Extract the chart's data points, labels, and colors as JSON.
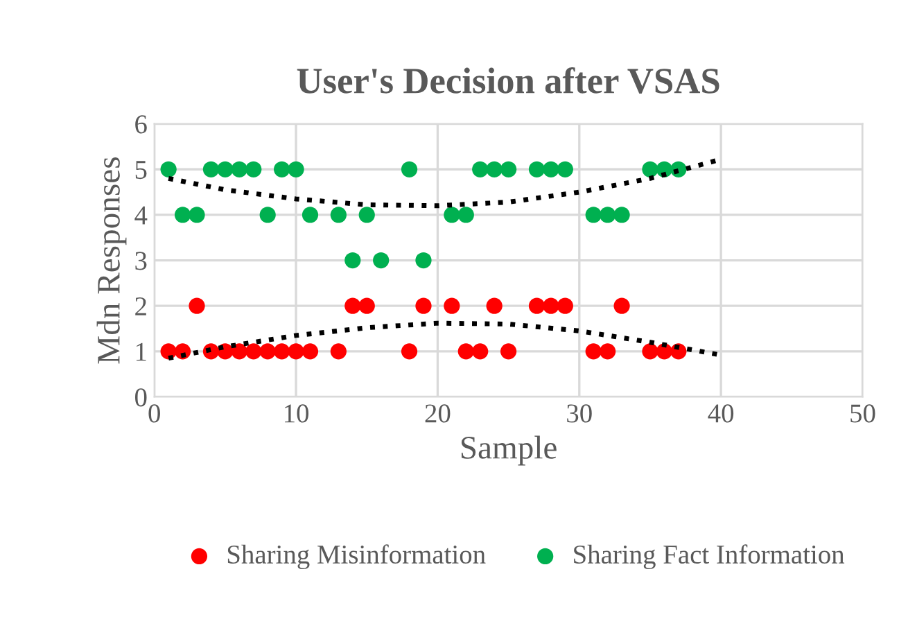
{
  "chart_data": {
    "type": "scatter",
    "title": "User's Decision after VSAS",
    "xlabel": "Sample",
    "ylabel": "Mdn Responses",
    "xlim": [
      0,
      50
    ],
    "xticks": [
      0,
      10,
      20,
      30,
      40,
      50
    ],
    "ylim": [
      0,
      6
    ],
    "yticks": [
      0,
      1,
      2,
      3,
      4,
      5,
      6
    ],
    "grid": true,
    "legend": "bottom",
    "marker": "circle",
    "series": [
      {
        "name": "Sharing Misinformation",
        "color": "#ff0000",
        "x": [
          1,
          2,
          3,
          4,
          5,
          6,
          7,
          8,
          9,
          10,
          11,
          13,
          14,
          15,
          18,
          19,
          21,
          22,
          23,
          24,
          25,
          27,
          28,
          29,
          31,
          32,
          33,
          35,
          36,
          37
        ],
        "values": [
          1,
          1,
          2,
          1,
          1,
          1,
          1,
          1,
          1,
          1,
          1,
          1,
          2,
          2,
          1,
          2,
          2,
          1,
          1,
          2,
          1,
          2,
          2,
          2,
          1,
          1,
          2,
          1,
          1,
          1
        ]
      },
      {
        "name": "Sharing Fact Information",
        "color": "#00b050",
        "x": [
          1,
          2,
          3,
          4,
          5,
          6,
          7,
          8,
          9,
          10,
          11,
          13,
          14,
          15,
          16,
          18,
          19,
          21,
          22,
          23,
          24,
          25,
          27,
          28,
          29,
          31,
          32,
          33,
          35,
          36,
          37
        ],
        "values": [
          5,
          4,
          4,
          5,
          5,
          5,
          5,
          4,
          5,
          5,
          4,
          4,
          3,
          4,
          3,
          5,
          3,
          4,
          4,
          5,
          5,
          5,
          5,
          5,
          5,
          4,
          4,
          4,
          5,
          5,
          5
        ]
      },
      {
        "type": "line",
        "color": "#000000",
        "line_style": "dotted",
        "marker": "none",
        "x": [
          1,
          5,
          10,
          15,
          20,
          25,
          30,
          35,
          40
        ],
        "values": [
          0.85,
          1.1,
          1.35,
          1.52,
          1.62,
          1.6,
          1.45,
          1.2,
          0.92
        ]
      },
      {
        "type": "line",
        "color": "#000000",
        "line_style": "dotted",
        "marker": "none",
        "x": [
          1,
          5,
          10,
          15,
          20,
          25,
          30,
          35,
          40
        ],
        "values": [
          4.8,
          4.55,
          4.35,
          4.22,
          4.2,
          4.28,
          4.5,
          4.8,
          5.22
        ]
      }
    ]
  }
}
